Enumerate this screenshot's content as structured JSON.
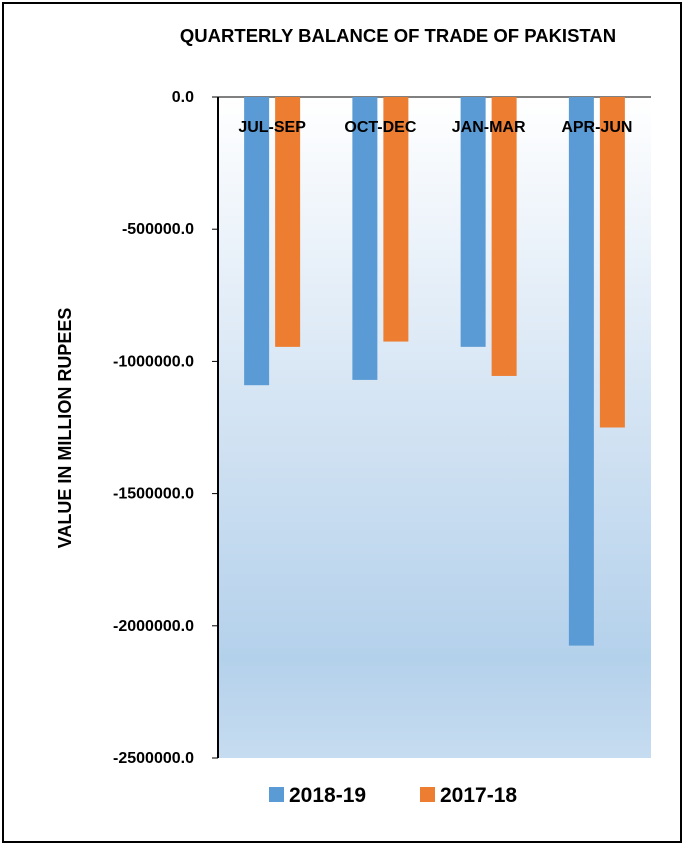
{
  "chart_data": {
    "type": "bar",
    "title": "QUARTERLY BALANCE OF TRADE OF PAKISTAN",
    "xlabel": "",
    "ylabel": "VALUE IN MILLION RUPEES",
    "categories": [
      "JUL-SEP",
      "OCT-DEC",
      "JAN-MAR",
      "APR-JUN"
    ],
    "series": [
      {
        "name": "2018-19",
        "color": "#5B9BD5",
        "values": [
          -1090000,
          -1070000,
          -945000,
          -2075000
        ]
      },
      {
        "name": "2017-18",
        "color": "#ED7D31",
        "values": [
          -945000,
          -925000,
          -1055000,
          -1250000
        ]
      }
    ],
    "ylim": [
      -2500000,
      0
    ],
    "yticks": [
      0,
      -500000,
      -1000000,
      -1500000,
      -2000000,
      -2500000
    ],
    "ytick_labels": [
      "0.0",
      "-500000.0",
      "-1000000.0",
      "-1500000.0",
      "-2000000.0",
      "-2500000.0"
    ],
    "legend_position": "bottom",
    "grid": false,
    "plot_background": "gradient white to light blue"
  }
}
